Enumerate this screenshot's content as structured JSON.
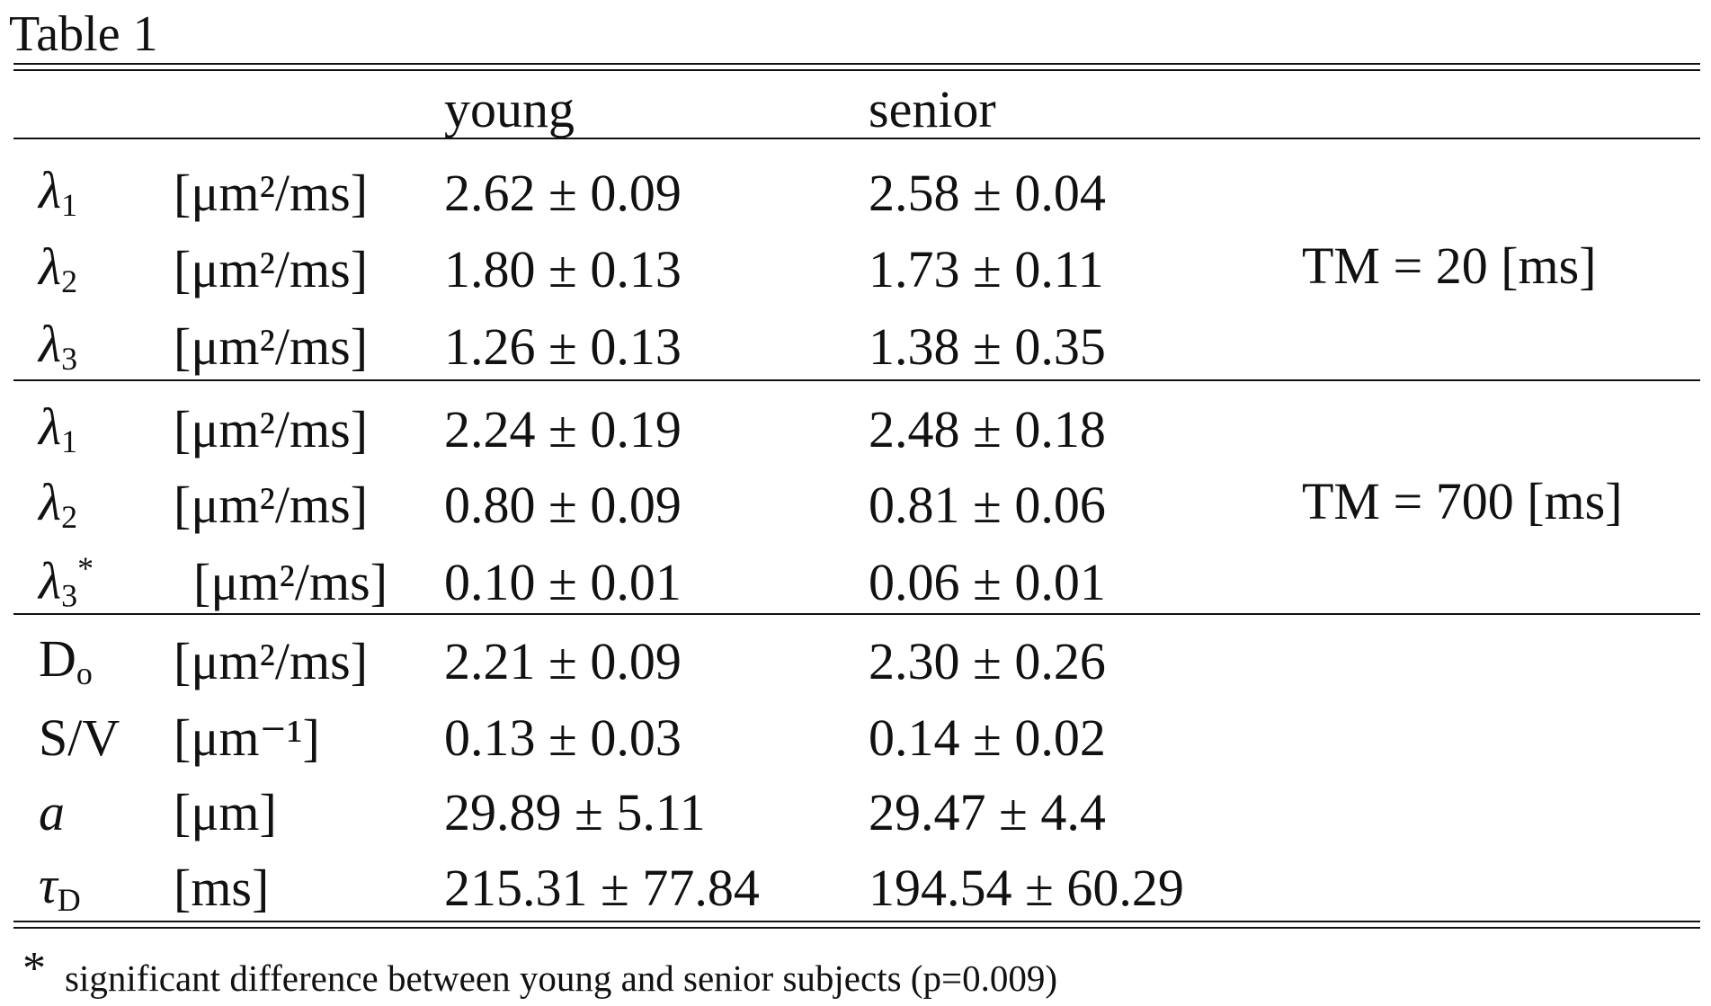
{
  "title": "Table 1",
  "header": {
    "col1": "young",
    "col2": "senior"
  },
  "groups": [
    {
      "rows": [
        {
          "symbol": {
            "base": "λ",
            "sub": "1"
          },
          "unit": "[μm²/ms]",
          "young": "2.62 ± 0.09",
          "senior": "2.58 ± 0.04"
        },
        {
          "symbol": {
            "base": "λ",
            "sub": "2"
          },
          "unit": "[μm²/ms]",
          "young": "1.80 ± 0.13",
          "senior": "1.73 ± 0.11"
        },
        {
          "symbol": {
            "base": "λ",
            "sub": "3"
          },
          "unit": "[μm²/ms]",
          "young": "1.26 ± 0.13",
          "senior": "1.38 ± 0.35"
        }
      ],
      "note": "TM = 20 [ms]"
    },
    {
      "rows": [
        {
          "symbol": {
            "base": "λ",
            "sub": "1"
          },
          "unit": "[μm²/ms]",
          "young": "2.24 ± 0.19",
          "senior": "2.48 ± 0.18"
        },
        {
          "symbol": {
            "base": "λ",
            "sub": "2"
          },
          "unit": "[μm²/ms]",
          "young": "0.80 ± 0.09",
          "senior": "0.81 ± 0.06"
        },
        {
          "symbol": {
            "base": "λ",
            "sub": "3",
            "sup": "*"
          },
          "unit": "[μm²/ms]",
          "young": "0.10 ± 0.01",
          "senior": "0.06 ± 0.01"
        }
      ],
      "note": "TM = 700 [ms]"
    },
    {
      "rows": [
        {
          "symbol": {
            "base": "D",
            "sub": "o"
          },
          "unit": "[μm²/ms]",
          "young": "2.21 ± 0.09",
          "senior": "2.30 ± 0.26"
        },
        {
          "symbol": {
            "base": "S/V"
          },
          "unit": "[μm⁻¹]",
          "young": "0.13 ± 0.03",
          "senior": "0.14 ± 0.02"
        },
        {
          "symbol": {
            "base": "a"
          },
          "unit": "[μm]",
          "young": "29.89 ± 5.11",
          "senior": "29.47 ± 4.4"
        },
        {
          "symbol": {
            "base": "τ",
            "sub": "D"
          },
          "unit": "[ms]",
          "young": "215.31 ± 77.84",
          "senior": "194.54 ± 60.29"
        }
      ]
    }
  ],
  "footnote": {
    "mark": "*",
    "text": "significant difference between young and senior subjects (p=0.009)"
  }
}
